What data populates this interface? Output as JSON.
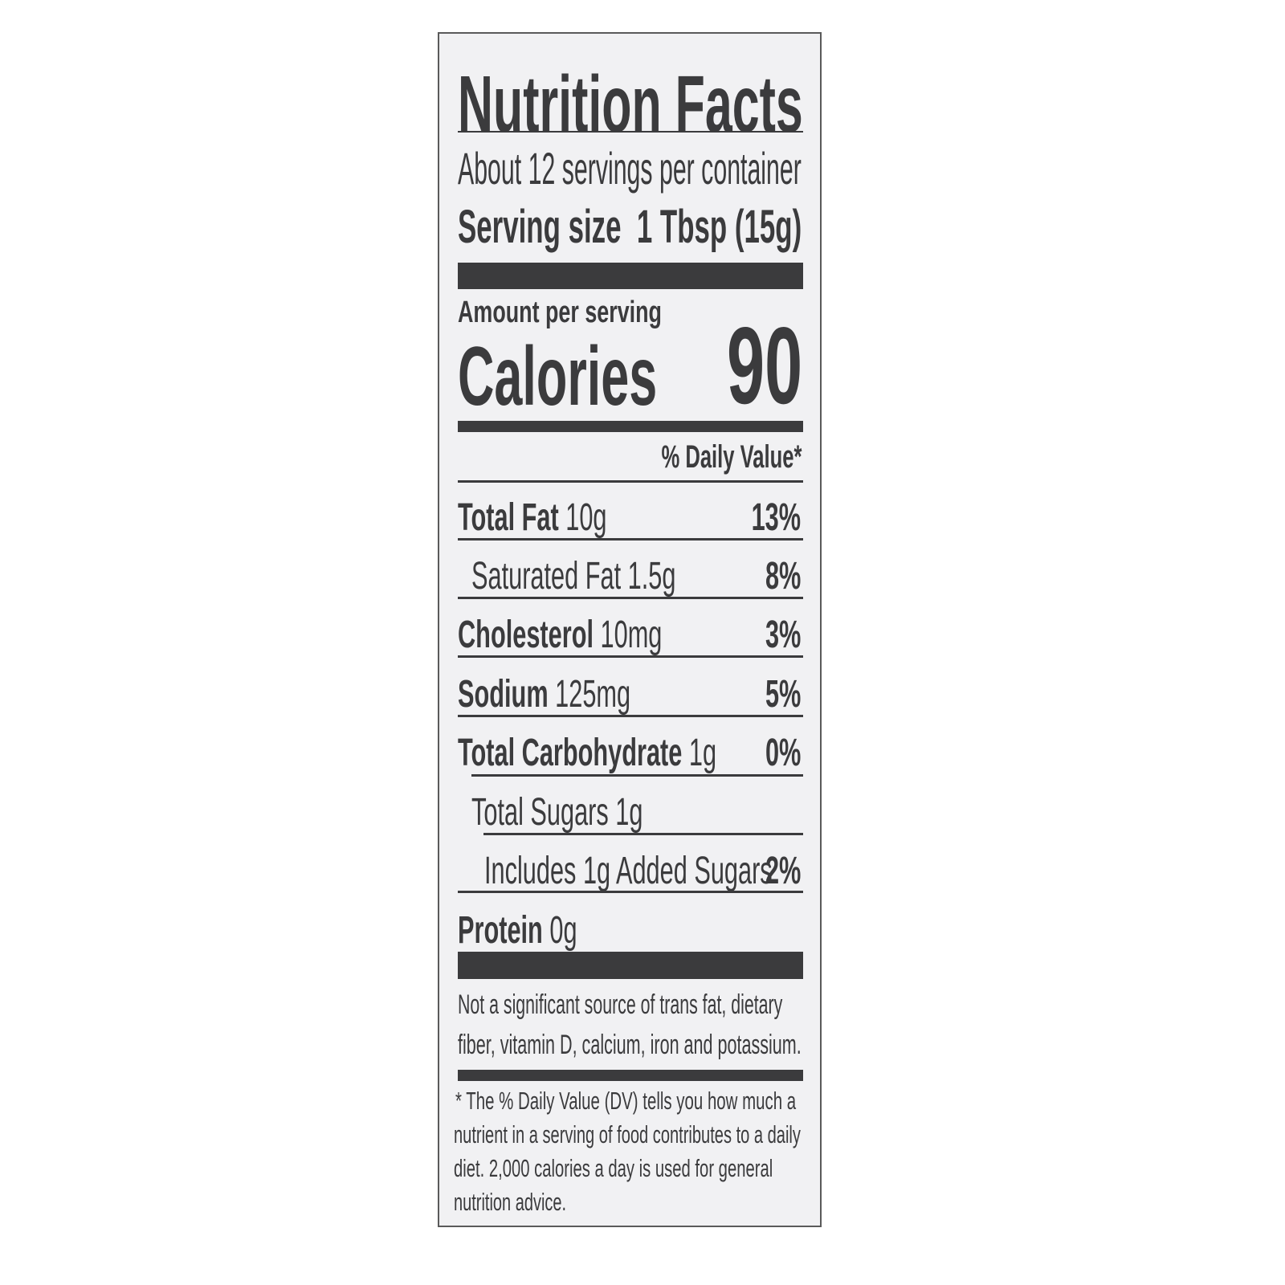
{
  "title": "Nutrition Facts",
  "servings_per_container": "About 12 servings per container",
  "serving_size": {
    "label": "Serving size",
    "value": "1 Tbsp (15g)"
  },
  "amount_per_serving": "Amount per serving",
  "calories": {
    "label": "Calories",
    "value": "90"
  },
  "daily_value_header": "% Daily Value*",
  "nutrients": [
    {
      "name": "Total Fat",
      "amount": "10g",
      "dv": "13%"
    },
    {
      "name": "Saturated Fat",
      "amount": "1.5g",
      "dv": "8%"
    },
    {
      "name": "Cholesterol",
      "amount": "10mg",
      "dv": "3%"
    },
    {
      "name": "Sodium",
      "amount": "125mg",
      "dv": "5%"
    },
    {
      "name": "Total Carbohydrate",
      "amount": "1g",
      "dv": "0%"
    },
    {
      "name": "Total Sugars",
      "amount": "1g",
      "dv": ""
    },
    {
      "name": "Includes 1g Added Sugars",
      "amount": "",
      "dv": "2%"
    },
    {
      "name": "Protein",
      "amount": "0g",
      "dv": ""
    }
  ],
  "not_significant": [
    "Not a significant source of trans fat, dietary",
    "fiber, vitamin D, calcium, iron and potassium."
  ],
  "footnote": [
    "* The % Daily Value (DV) tells you how much a",
    "nutrient in a serving of food contributes to a daily",
    "diet. 2,000 calories a day is used for general",
    "nutrition advice."
  ]
}
